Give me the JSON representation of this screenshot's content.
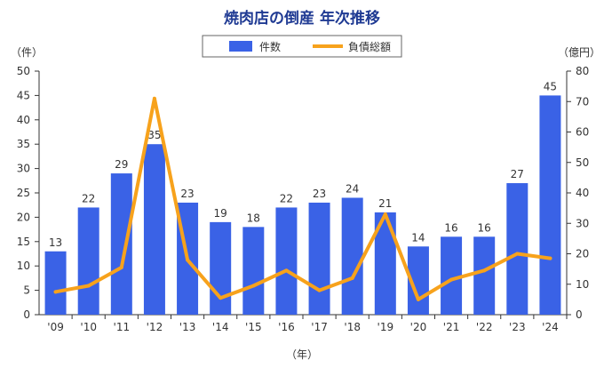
{
  "colors": {
    "bar": "#3a62e6",
    "line": "#f7a21c",
    "axis": "#333333"
  },
  "chart_data": {
    "type": "bar",
    "title": "焼肉店の倒産 年次推移",
    "categories": [
      "'09",
      "'10",
      "'11",
      "'12",
      "'13",
      "'14",
      "'15",
      "'16",
      "'17",
      "'18",
      "'19",
      "'20",
      "'21",
      "'22",
      "'23",
      "'24"
    ],
    "series": [
      {
        "name": "件数",
        "type": "bar",
        "axis": "left",
        "values": [
          13,
          22,
          29,
          35,
          23,
          19,
          18,
          22,
          23,
          24,
          21,
          14,
          16,
          16,
          27,
          45
        ]
      },
      {
        "name": "負債総額",
        "type": "line",
        "axis": "right",
        "values": [
          7.5,
          9.5,
          15.5,
          71,
          18,
          5.5,
          9.5,
          14.5,
          8,
          12,
          33,
          5,
          11.5,
          14.5,
          20,
          18.5
        ]
      }
    ],
    "ylabel_left": "（件）",
    "ylabel_right": "（億円）",
    "xlabel": "（年）",
    "ylim_left": [
      0,
      50
    ],
    "ylim_right": [
      0,
      80
    ],
    "yticks_left": [
      0,
      5,
      10,
      15,
      20,
      25,
      30,
      35,
      40,
      45,
      50
    ],
    "yticks_right": [
      0,
      10,
      20,
      30,
      40,
      50,
      60,
      70,
      80
    ],
    "legend_position": "top-center",
    "grid": false
  }
}
